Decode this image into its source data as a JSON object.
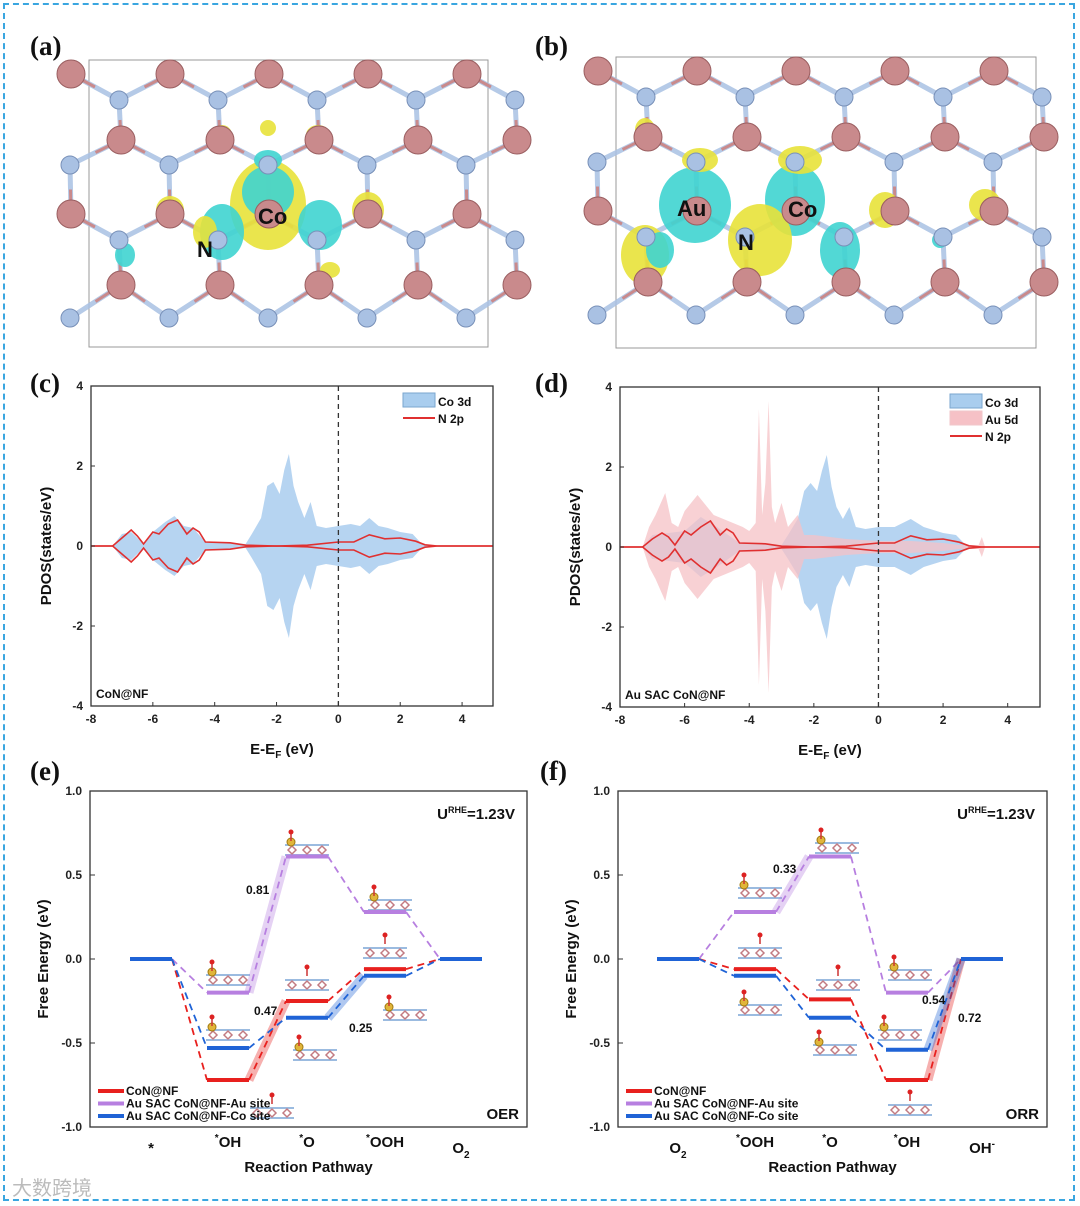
{
  "panels": {
    "a": {
      "label": "(a)",
      "atoms": [
        "Co",
        "N"
      ]
    },
    "b": {
      "label": "(b)",
      "atoms": [
        "Au",
        "Co",
        "N"
      ]
    },
    "c": {
      "label": "(c)"
    },
    "d": {
      "label": "(d)"
    },
    "e": {
      "label": "(e)"
    },
    "f": {
      "label": "(f)"
    }
  },
  "watermark": "大数跨境",
  "colors": {
    "co3d": "#a9cdee",
    "au5d": "#f6c1c6",
    "n2p": "#e03030",
    "conf": "#e8201e",
    "au_site": "#b77fe0",
    "co_site": "#1f63d6",
    "lattice_pink": "#c98a8c",
    "lattice_blue": "#a9c1e3",
    "iso_yellow": "#e8e23a",
    "iso_cyan": "#3fd4d0"
  },
  "chart_data": [
    {
      "id": "c",
      "type": "area",
      "xlabel": "E-E",
      "xlabel_sub": "F",
      "xlabel_unit": " (eV)",
      "ylabel": "PDOS(states/eV)",
      "xlim": [
        -8,
        5
      ],
      "ylim": [
        -4,
        4
      ],
      "xticks": [
        "-8",
        "-6",
        "-4",
        "-2",
        "0",
        "2",
        "4"
      ],
      "yticks": [
        "-4",
        "-2",
        "0",
        "2",
        "4"
      ],
      "annotation": "CoN@NF",
      "fermi_line": 0,
      "legend": {
        "placement": "top-right",
        "entries": [
          "Co 3d",
          "N  2p"
        ]
      },
      "series": [
        {
          "name": "Co 3d",
          "style": "fill",
          "color": "co3d",
          "symmetric": true,
          "points": [
            [
              -7.3,
              0
            ],
            [
              -7,
              0.3
            ],
            [
              -6.7,
              0.35
            ],
            [
              -6.3,
              0.05
            ],
            [
              -6,
              0.35
            ],
            [
              -5.6,
              0.6
            ],
            [
              -5.3,
              0.75
            ],
            [
              -5,
              0.5
            ],
            [
              -4.7,
              0.45
            ],
            [
              -4.3,
              0.1
            ],
            [
              -3.5,
              0.08
            ],
            [
              -3,
              0.05
            ],
            [
              -2.8,
              0.3
            ],
            [
              -2.5,
              0.7
            ],
            [
              -2.3,
              1.5
            ],
            [
              -2.1,
              1.6
            ],
            [
              -1.9,
              1.3
            ],
            [
              -1.75,
              1.9
            ],
            [
              -1.6,
              2.3
            ],
            [
              -1.45,
              1.5
            ],
            [
              -1.3,
              1.1
            ],
            [
              -1.1,
              0.7
            ],
            [
              -0.9,
              1.1
            ],
            [
              -0.7,
              0.5
            ],
            [
              -0.4,
              0.45
            ],
            [
              0,
              0.5
            ],
            [
              0.4,
              0.55
            ],
            [
              0.7,
              0.5
            ],
            [
              1,
              0.7
            ],
            [
              1.3,
              0.5
            ],
            [
              1.6,
              0.45
            ],
            [
              2,
              0.35
            ],
            [
              2.4,
              0.3
            ],
            [
              2.7,
              0.05
            ],
            [
              3,
              0
            ]
          ]
        },
        {
          "name": "N  2p",
          "style": "line",
          "color": "n2p",
          "symmetric": true,
          "points": [
            [
              -8,
              0
            ],
            [
              -7.3,
              0
            ],
            [
              -7,
              0.2
            ],
            [
              -6.7,
              0.4
            ],
            [
              -6.5,
              0.25
            ],
            [
              -6.3,
              0.05
            ],
            [
              -6,
              0.35
            ],
            [
              -5.8,
              0.3
            ],
            [
              -5.5,
              0.55
            ],
            [
              -5.2,
              0.65
            ],
            [
              -4.9,
              0.3
            ],
            [
              -4.7,
              0.45
            ],
            [
              -4.5,
              0.35
            ],
            [
              -4.3,
              0.1
            ],
            [
              -3.5,
              0.08
            ],
            [
              -3,
              0.02
            ],
            [
              -2,
              0.0
            ],
            [
              -1,
              0.02
            ],
            [
              0,
              0.1
            ],
            [
              0.5,
              0.1
            ],
            [
              1,
              0.28
            ],
            [
              1.5,
              0.18
            ],
            [
              2,
              0.2
            ],
            [
              2.5,
              0.12
            ],
            [
              2.8,
              0.03
            ],
            [
              3.2,
              0
            ],
            [
              5,
              0
            ]
          ]
        }
      ]
    },
    {
      "id": "d",
      "type": "area",
      "xlabel": "E-E",
      "xlabel_sub": "F",
      "xlabel_unit": " (eV)",
      "ylabel": "PDOS(states/eV)",
      "xlim": [
        -8,
        5
      ],
      "ylim": [
        -4,
        4
      ],
      "xticks": [
        "-8",
        "-6",
        "-4",
        "-2",
        "0",
        "2",
        "4"
      ],
      "yticks": [
        "-4",
        "-2",
        "0",
        "2",
        "4"
      ],
      "annotation": "Au SAC CoN@NF",
      "fermi_line": 0,
      "legend": {
        "placement": "top-right",
        "entries": [
          "Co 3d",
          "Au 5d",
          "N  2p"
        ]
      },
      "series": [
        {
          "name": "Co 3d",
          "style": "fill",
          "color": "co3d",
          "symmetric": true,
          "points": [
            [
              -7.3,
              0
            ],
            [
              -7,
              0.3
            ],
            [
              -6.5,
              0.35
            ],
            [
              -6,
              0.4
            ],
            [
              -5.5,
              0.75
            ],
            [
              -5,
              0.5
            ],
            [
              -4.3,
              0.1
            ],
            [
              -3,
              0.05
            ],
            [
              -2.8,
              0.3
            ],
            [
              -2.5,
              0.7
            ],
            [
              -2.3,
              1.4
            ],
            [
              -2.1,
              1.6
            ],
            [
              -1.9,
              1.4
            ],
            [
              -1.75,
              1.9
            ],
            [
              -1.6,
              2.3
            ],
            [
              -1.45,
              1.5
            ],
            [
              -1.3,
              1.0
            ],
            [
              -1.1,
              0.7
            ],
            [
              -0.9,
              1.0
            ],
            [
              -0.7,
              0.5
            ],
            [
              -0.4,
              0.45
            ],
            [
              0,
              0.5
            ],
            [
              0.5,
              0.5
            ],
            [
              1,
              0.7
            ],
            [
              1.4,
              0.5
            ],
            [
              2,
              0.35
            ],
            [
              2.4,
              0.3
            ],
            [
              2.7,
              0.05
            ],
            [
              3,
              0
            ]
          ]
        },
        {
          "name": "Au 5d",
          "style": "fill",
          "color": "au5d",
          "symmetric": true,
          "points": [
            [
              -7.3,
              0
            ],
            [
              -7.1,
              0.5
            ],
            [
              -6.9,
              0.8
            ],
            [
              -6.6,
              1.35
            ],
            [
              -6.4,
              0.6
            ],
            [
              -6.2,
              0.5
            ],
            [
              -6,
              0.9
            ],
            [
              -5.6,
              1.3
            ],
            [
              -5.3,
              1.0
            ],
            [
              -5.1,
              0.8
            ],
            [
              -4.8,
              0.7
            ],
            [
              -4.5,
              0.6
            ],
            [
              -4.2,
              0.5
            ],
            [
              -4,
              0.4
            ],
            [
              -3.8,
              0.6
            ],
            [
              -3.7,
              3.45
            ],
            [
              -3.6,
              0.8
            ],
            [
              -3.5,
              1.6
            ],
            [
              -3.4,
              3.65
            ],
            [
              -3.3,
              1.0
            ],
            [
              -3.2,
              0.6
            ],
            [
              -3,
              1.1
            ],
            [
              -2.8,
              0.5
            ],
            [
              -2.5,
              0.8
            ],
            [
              -2.3,
              0.3
            ],
            [
              -2,
              0.3
            ],
            [
              -1,
              0.2
            ],
            [
              0,
              0.15
            ],
            [
              1,
              0.15
            ],
            [
              2,
              0.1
            ],
            [
              2.5,
              0.05
            ],
            [
              3.1,
              0.05
            ],
            [
              3.2,
              0.25
            ],
            [
              3.3,
              0
            ]
          ]
        },
        {
          "name": "N  2p",
          "style": "line",
          "color": "n2p",
          "symmetric": true,
          "points": [
            [
              -8,
              0
            ],
            [
              -7.3,
              0
            ],
            [
              -7,
              0.2
            ],
            [
              -6.7,
              0.35
            ],
            [
              -6.5,
              0.25
            ],
            [
              -6.3,
              0.05
            ],
            [
              -6,
              0.4
            ],
            [
              -5.8,
              0.3
            ],
            [
              -5.5,
              0.5
            ],
            [
              -5.2,
              0.65
            ],
            [
              -4.9,
              0.3
            ],
            [
              -4.7,
              0.45
            ],
            [
              -4.5,
              0.35
            ],
            [
              -4.3,
              0.1
            ],
            [
              -3.5,
              0.08
            ],
            [
              -3,
              0.02
            ],
            [
              -2,
              0.0
            ],
            [
              -1,
              0.02
            ],
            [
              0,
              0.1
            ],
            [
              0.5,
              0.1
            ],
            [
              1,
              0.28
            ],
            [
              1.5,
              0.18
            ],
            [
              2,
              0.2
            ],
            [
              2.5,
              0.12
            ],
            [
              2.8,
              0.03
            ],
            [
              3.2,
              0
            ],
            [
              5,
              0
            ]
          ]
        }
      ]
    },
    {
      "id": "e",
      "type": "line",
      "title_note": "OER",
      "potential": {
        "main": "U",
        "sup": "RHE",
        "value": "=1.23V"
      },
      "xlabel": "Reaction Pathway",
      "ylabel": "Free Energy (eV)",
      "ylim": [
        -1.0,
        1.0
      ],
      "yticks": [
        "1.0",
        "0.5",
        "0.0",
        "-0.5",
        "-1.0"
      ],
      "categories": [
        {
          "pre": "",
          "main": "*",
          "sub": ""
        },
        {
          "pre": "*",
          "main": "OH",
          "sub": ""
        },
        {
          "pre": "*",
          "main": "O",
          "sub": ""
        },
        {
          "pre": "*",
          "main": "OOH",
          "sub": ""
        },
        {
          "pre": "",
          "main": "O",
          "sub": "2"
        }
      ],
      "legend": {
        "placement": "bottom-left",
        "entries": [
          "CoN@NF",
          "Au SAC CoN@NF-Au site",
          "Au SAC CoN@NF-Co site"
        ]
      },
      "series": [
        {
          "name": "Au SAC CoN@NF-Au site",
          "color": "au_site",
          "values": [
            0,
            -0.2,
            0.61,
            0.28,
            0
          ],
          "step": {
            "from": 1,
            "label": "0.81"
          }
        },
        {
          "name": "CoN@NF",
          "color": "conf",
          "values": [
            0,
            -0.72,
            -0.25,
            -0.06,
            0
          ],
          "step": {
            "from": 1,
            "label": "0.47"
          }
        },
        {
          "name": "Au SAC CoN@NF-Co site",
          "color": "co_site",
          "values": [
            0,
            -0.53,
            -0.35,
            -0.1,
            0
          ],
          "step": {
            "from": 2,
            "label": "0.25"
          }
        }
      ]
    },
    {
      "id": "f",
      "type": "line",
      "title_note": "ORR",
      "potential": {
        "main": "U",
        "sup": "RHE",
        "value": "=1.23V"
      },
      "xlabel": "Reaction Pathway",
      "ylabel": "Free Energy (eV)",
      "ylim": [
        -1.0,
        1.0
      ],
      "yticks": [
        "1.0",
        "0.5",
        "0.0",
        "-0.5",
        "-1.0"
      ],
      "categories": [
        {
          "pre": "",
          "main": "O",
          "sub": "2"
        },
        {
          "pre": "*",
          "main": "OOH",
          "sub": ""
        },
        {
          "pre": "*",
          "main": "O",
          "sub": ""
        },
        {
          "pre": "*",
          "main": "OH",
          "sub": ""
        },
        {
          "pre": "",
          "main": "OH",
          "sub": "-"
        }
      ],
      "legend": {
        "placement": "bottom-left",
        "entries": [
          "CoN@NF",
          "Au SAC CoN@NF-Au site",
          "Au SAC CoN@NF-Co site"
        ]
      },
      "series": [
        {
          "name": "Au SAC CoN@NF-Au site",
          "color": "au_site",
          "values": [
            0,
            0.28,
            0.61,
            -0.2,
            0
          ],
          "step": {
            "from": 1,
            "label": "0.33"
          }
        },
        {
          "name": "CoN@NF",
          "color": "conf",
          "values": [
            0,
            -0.06,
            -0.24,
            -0.72,
            0
          ],
          "step": {
            "from": 3,
            "label": "0.72"
          }
        },
        {
          "name": "Au SAC CoN@NF-Co site",
          "color": "co_site",
          "values": [
            0,
            -0.1,
            -0.35,
            -0.54,
            0
          ],
          "step": {
            "from": 3,
            "label": "0.54"
          }
        }
      ]
    }
  ]
}
